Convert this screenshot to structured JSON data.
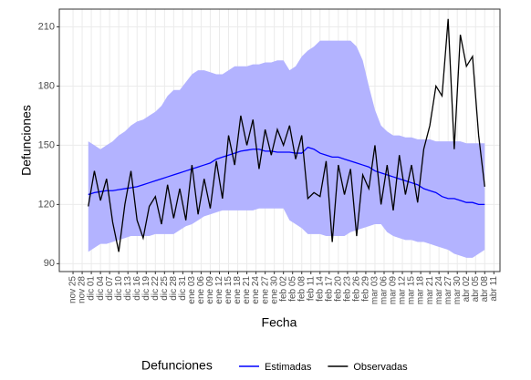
{
  "chart_data": {
    "type": "line",
    "xlabel": "Fecha",
    "ylabel": "Defunciones",
    "legend_title": "Defunciones",
    "legend": "bottom",
    "grid": true,
    "x": [
      5,
      7,
      9,
      11,
      13,
      15,
      17,
      19,
      21,
      23,
      25,
      27,
      29,
      31,
      33,
      35,
      37,
      39,
      41,
      43,
      45,
      47,
      49,
      51,
      53,
      55,
      57,
      59,
      61,
      63,
      65,
      67,
      69,
      71,
      73,
      75,
      77,
      79,
      81,
      83,
      85,
      87,
      89,
      91,
      93,
      95,
      97,
      99,
      101,
      103,
      105,
      107,
      109,
      111,
      113,
      115,
      117,
      119,
      121,
      123,
      125,
      127,
      129,
      131,
      133,
      135
    ],
    "band": {
      "color": "#b3b3ff",
      "upper": [
        152,
        150,
        148,
        150,
        152,
        155,
        157,
        160,
        162,
        163,
        165,
        167,
        170,
        175,
        178,
        178,
        182,
        186,
        188,
        188,
        187,
        186,
        186,
        188,
        190,
        190,
        190,
        191,
        191,
        192,
        192,
        193,
        193,
        188,
        190,
        195,
        198,
        200,
        203,
        203,
        203,
        203,
        203,
        203,
        200,
        193,
        180,
        168,
        160,
        157,
        155,
        155,
        154,
        154,
        153,
        153,
        153,
        152,
        152,
        152,
        152,
        152,
        151,
        151,
        151,
        151
      ],
      "lower": [
        96,
        98,
        100,
        100,
        101,
        102,
        103,
        104,
        104,
        104,
        104,
        105,
        105,
        105,
        105,
        107,
        109,
        110,
        112,
        114,
        115,
        116,
        117,
        117,
        117,
        117,
        117,
        117,
        118,
        118,
        118,
        118,
        118,
        112,
        110,
        108,
        105,
        105,
        105,
        104,
        104,
        104,
        104,
        106,
        107,
        108,
        109,
        110,
        110,
        106,
        104,
        103,
        102,
        102,
        101,
        101,
        100,
        99,
        98,
        97,
        95,
        94,
        93,
        93,
        95,
        97
      ]
    },
    "series": [
      {
        "name": "Estimadas",
        "color": "#0000ff",
        "values": [
          125,
          126,
          126.5,
          127,
          127,
          127.5,
          128,
          128.5,
          129,
          130,
          131,
          132,
          133,
          134,
          135,
          136,
          137,
          138,
          139,
          140,
          141,
          143,
          144,
          145,
          146,
          147,
          147.5,
          148,
          148,
          147,
          147,
          146.5,
          146.5,
          146.5,
          146,
          146,
          149,
          148,
          146,
          145,
          144,
          144,
          143,
          142,
          141,
          140,
          139,
          137,
          136,
          135,
          134,
          133,
          132,
          131,
          130,
          128,
          127,
          126,
          124,
          123,
          123,
          122,
          121,
          121,
          120,
          120
        ]
      },
      {
        "name": "Observadas",
        "color": "#000000",
        "values": [
          119,
          137,
          122,
          133,
          111,
          96,
          120,
          137,
          112,
          103,
          119,
          124,
          110,
          130,
          113,
          128,
          112,
          140,
          115,
          133,
          118,
          142,
          123,
          155,
          140,
          165,
          150,
          163,
          138,
          158,
          145,
          158,
          150,
          160,
          143,
          155,
          123,
          126,
          124,
          142,
          101,
          140,
          125,
          138,
          104,
          135,
          128,
          150,
          120,
          140,
          117,
          145,
          125,
          140,
          121,
          148,
          160,
          180,
          175,
          214,
          148,
          206,
          190,
          195,
          155,
          129
        ]
      }
    ],
    "xlim": [
      -4.5,
      140
    ],
    "ylim": [
      86,
      219
    ],
    "yticks": [
      90,
      120,
      150,
      180,
      210
    ],
    "xticks": [
      {
        "value": 0,
        "label": "nov 25"
      },
      {
        "value": 3,
        "label": "nov 28"
      },
      {
        "value": 6,
        "label": "dic 01"
      },
      {
        "value": 9,
        "label": "dic 04"
      },
      {
        "value": 12,
        "label": "dic 07"
      },
      {
        "value": 15,
        "label": "dic 10"
      },
      {
        "value": 18,
        "label": "dic 13"
      },
      {
        "value": 21,
        "label": "dic 16"
      },
      {
        "value": 24,
        "label": "dic 19"
      },
      {
        "value": 27,
        "label": "dic 22"
      },
      {
        "value": 30,
        "label": "dic 25"
      },
      {
        "value": 33,
        "label": "dic 28"
      },
      {
        "value": 36,
        "label": "dic 31"
      },
      {
        "value": 39,
        "label": "ene 03"
      },
      {
        "value": 42,
        "label": "ene 06"
      },
      {
        "value": 45,
        "label": "ene 09"
      },
      {
        "value": 48,
        "label": "ene 12"
      },
      {
        "value": 51,
        "label": "ene 15"
      },
      {
        "value": 54,
        "label": "ene 18"
      },
      {
        "value": 57,
        "label": "ene 21"
      },
      {
        "value": 60,
        "label": "ene 24"
      },
      {
        "value": 63,
        "label": "ene 27"
      },
      {
        "value": 66,
        "label": "ene 30"
      },
      {
        "value": 69,
        "label": "feb 02"
      },
      {
        "value": 72,
        "label": "feb 05"
      },
      {
        "value": 75,
        "label": "feb 08"
      },
      {
        "value": 78,
        "label": "feb 11"
      },
      {
        "value": 81,
        "label": "feb 14"
      },
      {
        "value": 84,
        "label": "feb 17"
      },
      {
        "value": 87,
        "label": "feb 20"
      },
      {
        "value": 90,
        "label": "feb 23"
      },
      {
        "value": 93,
        "label": "feb 26"
      },
      {
        "value": 96,
        "label": "feb 29"
      },
      {
        "value": 99,
        "label": "mar 03"
      },
      {
        "value": 102,
        "label": "mar 06"
      },
      {
        "value": 105,
        "label": "mar 09"
      },
      {
        "value": 108,
        "label": "mar 12"
      },
      {
        "value": 111,
        "label": "mar 15"
      },
      {
        "value": 114,
        "label": "mar 18"
      },
      {
        "value": 117,
        "label": "mar 21"
      },
      {
        "value": 120,
        "label": "mar 24"
      },
      {
        "value": 123,
        "label": "mar 27"
      },
      {
        "value": 126,
        "label": "mar 30"
      },
      {
        "value": 129,
        "label": "abr 02"
      },
      {
        "value": 132,
        "label": "abr 05"
      },
      {
        "value": 135,
        "label": "abr 08"
      },
      {
        "value": 138,
        "label": "abr 11"
      }
    ]
  }
}
